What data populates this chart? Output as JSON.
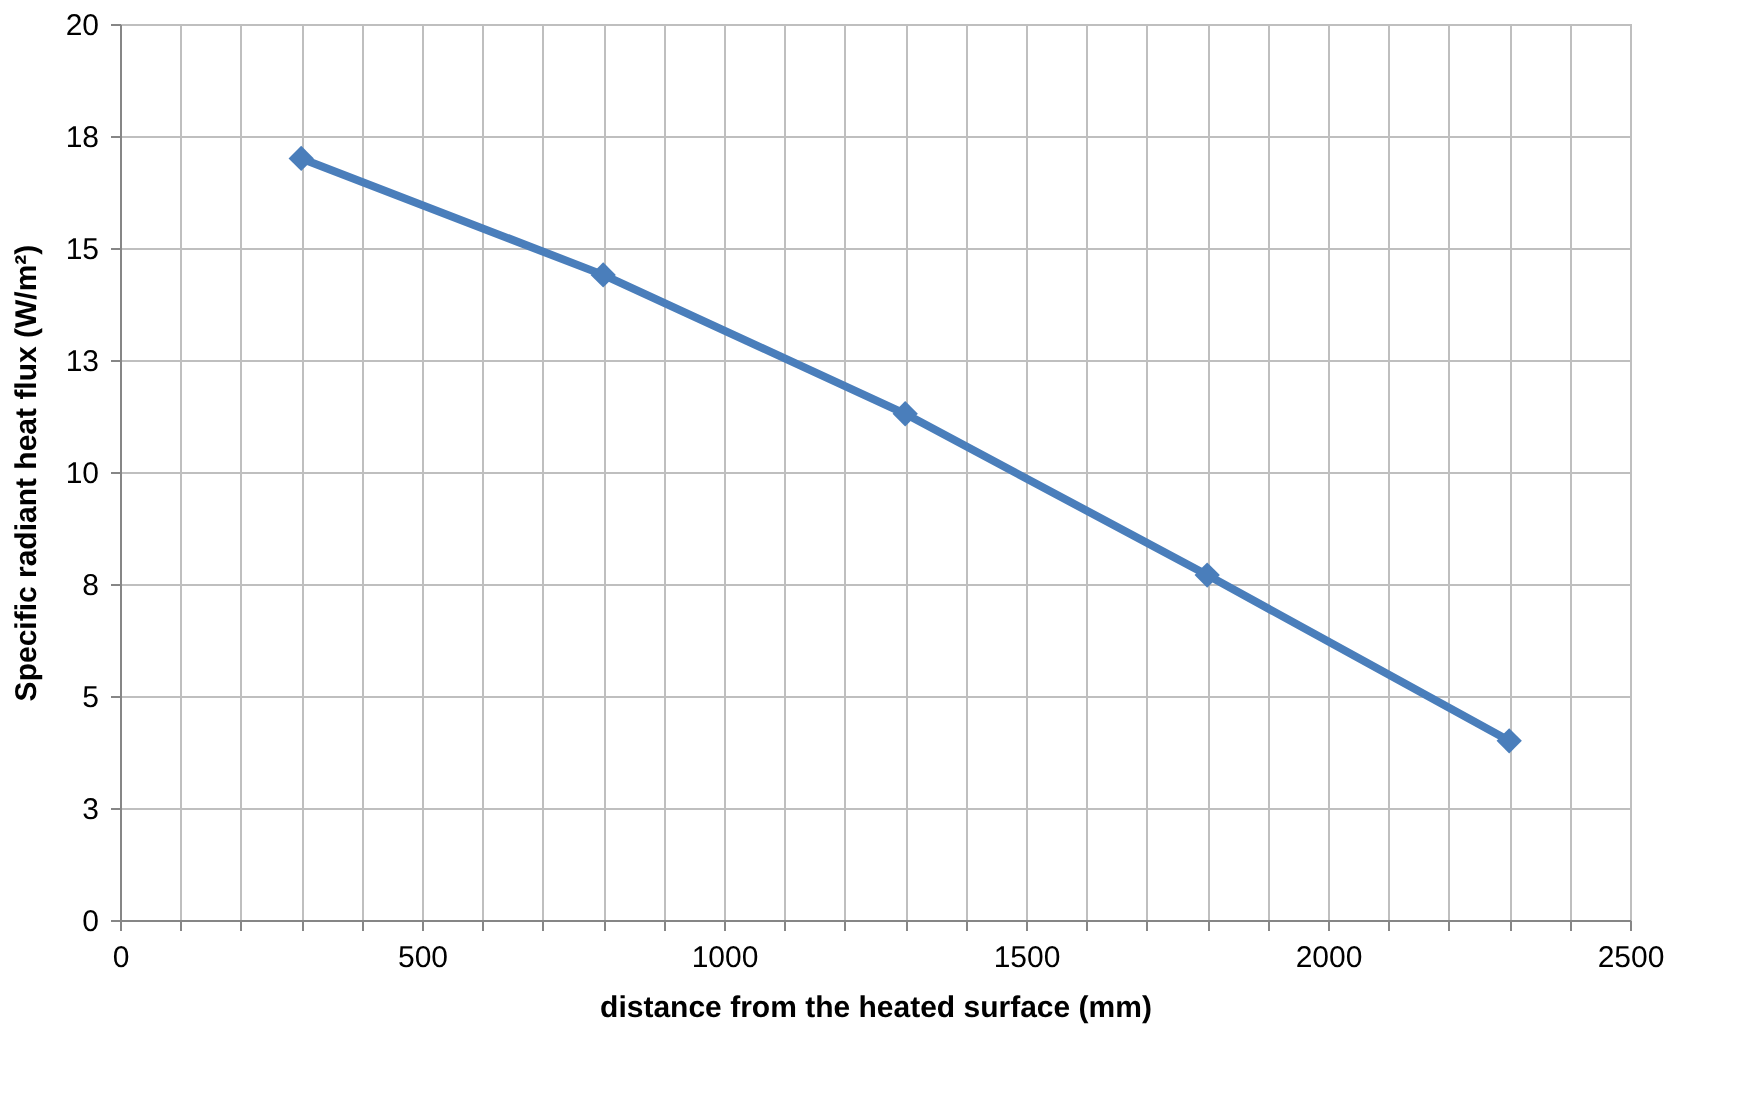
{
  "chart_data": {
    "type": "line",
    "xlabel": "distance from the heated surface (mm)",
    "ylabel": "Specific radiant heat flux (W/m²)",
    "x": [
      300,
      800,
      1300,
      1800,
      2300
    ],
    "series": [
      {
        "color": "#4a7ebb",
        "values": [
          17.0,
          14.4,
          11.3,
          7.7,
          4.0
        ]
      }
    ],
    "xlim": [
      0,
      2500
    ],
    "xticks": [
      0,
      {
        "value": 100,
        "label": null
      },
      {
        "value": 200,
        "label": null
      },
      {
        "value": 300,
        "label": null
      },
      {
        "value": 400,
        "label": null
      },
      500,
      {
        "value": 600,
        "label": null
      },
      {
        "value": 700,
        "label": null
      },
      {
        "value": 800,
        "label": null
      },
      {
        "value": 900,
        "label": null
      },
      1000,
      {
        "value": 1100,
        "label": null
      },
      {
        "value": 1200,
        "label": null
      },
      {
        "value": 1300,
        "label": null
      },
      {
        "value": 1400,
        "label": null
      },
      1500,
      {
        "value": 1600,
        "label": null
      },
      {
        "value": 1700,
        "label": null
      },
      {
        "value": 1800,
        "label": null
      },
      {
        "value": 1900,
        "label": null
      },
      2000,
      {
        "value": 2100,
        "label": null
      },
      {
        "value": 2200,
        "label": null
      },
      {
        "value": 2300,
        "label": null
      },
      {
        "value": 2400,
        "label": null
      },
      2500
    ],
    "ylim": [
      0,
      20
    ],
    "yticks": [
      0,
      {
        "value": 2.5,
        "label": "3"
      },
      5,
      {
        "value": 7.5,
        "label": "8"
      },
      10,
      {
        "value": 12.5,
        "label": "13"
      },
      15,
      {
        "value": 17.5,
        "label": "18"
      },
      20
    ],
    "grid": true,
    "marker": "diamond",
    "line_style": "solid",
    "legend": false
  }
}
